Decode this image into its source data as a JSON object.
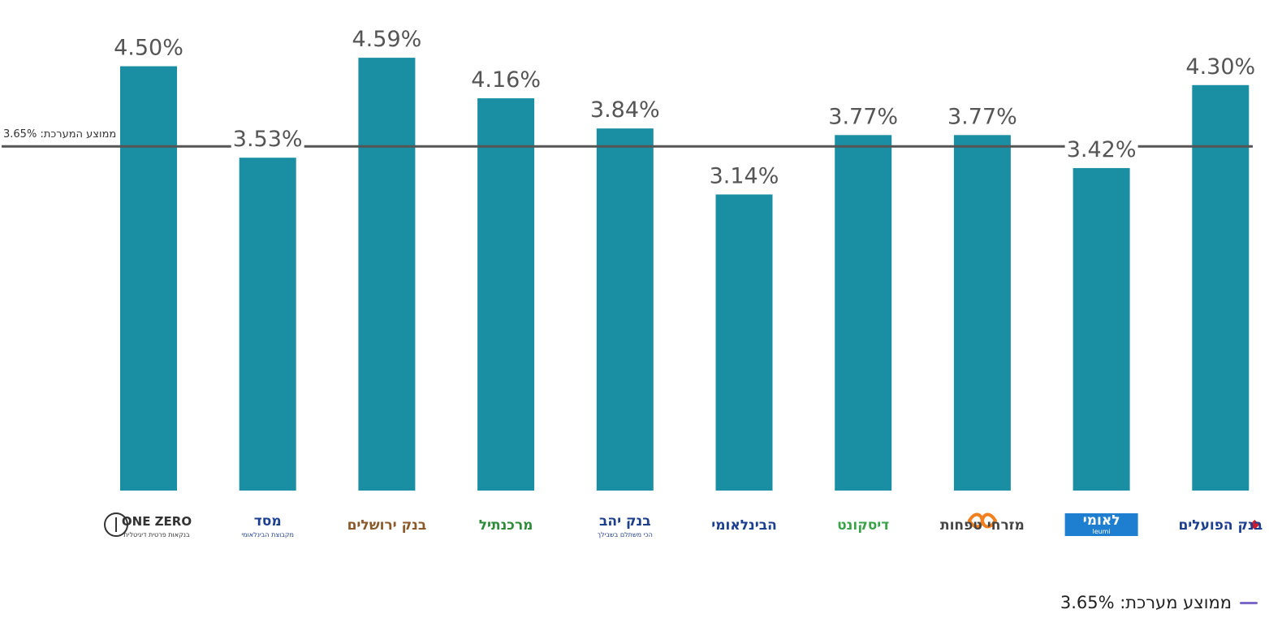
{
  "chart_data": {
    "type": "bar",
    "categories": [
      "ONE ZERO",
      "מסד",
      "בנק ירושלים",
      "מרכנתיל",
      "בנק יהב",
      "הבינלאומי",
      "דיסקונט",
      "מזרחי טפחות",
      "לאומי",
      "בנק הפועלים"
    ],
    "category_subtitles": [
      "בנקאות פרטית דיגיטלית",
      "מקבוצת הבינלאומי",
      "",
      "",
      "הכי משתלם בשבילך",
      "",
      "",
      "",
      "leumi",
      ""
    ],
    "values": [
      4.5,
      3.53,
      4.59,
      4.16,
      3.84,
      3.14,
      3.77,
      3.77,
      3.42,
      4.3
    ],
    "value_labels": [
      "4.50%",
      "3.53%",
      "4.59%",
      "4.16%",
      "3.84%",
      "3.14%",
      "3.77%",
      "3.77%",
      "3.42%",
      "4.30%"
    ],
    "ylim": [
      0,
      5
    ],
    "grid": false,
    "bar_color": "#1a8fa3",
    "reference_line": {
      "value": 3.65,
      "label": "ממוצע המערכת: 3.65%",
      "color": "#555555"
    },
    "legend": {
      "placement": "bottom-right",
      "entries": [
        {
          "name": "ממוצע מערכת: 3.65%",
          "color": "#7b68c9"
        }
      ]
    }
  },
  "logo_colors": {
    "ONE ZERO": "#333333",
    "מסד": "#1d3f8f",
    "בנק ירושלים": "#8a5a2b",
    "מרכנתיל": "#2e8b3a",
    "בנק יהב": "#1e3f8a",
    "הבינלאומי": "#1d3f8f",
    "דיסקונט": "#3aa34a",
    "מזרחי טפחות": "#444444",
    "לאומי": "#1e7fd0",
    "בנק הפועלים": "#1d3f8f"
  }
}
